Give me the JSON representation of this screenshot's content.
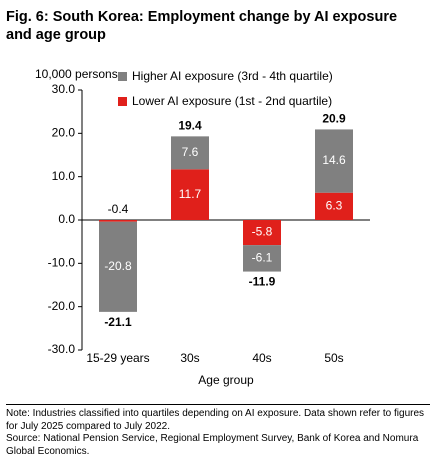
{
  "chart_data": {
    "type": "stacked_bar",
    "title": "Fig. 6: South Korea: Employment change by AI exposure and age group",
    "y_axis_label": "10,000 persons",
    "x_axis_label": "Age group",
    "categories": [
      "15-29 years",
      "30s",
      "40s",
      "50s"
    ],
    "series": [
      {
        "name": "Higher AI exposure (3rd - 4th quartile)",
        "color": "#808080",
        "values": [
          -20.8,
          7.6,
          -6.1,
          14.6
        ]
      },
      {
        "name": "Lower AI exposure (1st - 2nd quartile)",
        "color": "#e0201b",
        "values": [
          -0.4,
          11.7,
          -5.8,
          6.3
        ]
      }
    ],
    "totals": [
      -21.1,
      19.4,
      -11.9,
      20.9
    ],
    "ylim": [
      -30,
      30
    ],
    "yticks": [
      {
        "value": -30,
        "label": "-30.0"
      },
      {
        "value": -20,
        "label": "-20.0"
      },
      {
        "value": -10,
        "label": "-10.0"
      },
      {
        "value": 0,
        "label": "0.0"
      },
      {
        "value": 10,
        "label": "10.0"
      },
      {
        "value": 20,
        "label": "20.0"
      },
      {
        "value": 30,
        "label": "30.0"
      }
    ],
    "notes": [
      "Note: Industries classified into quartiles depending on AI exposure. Data shown refer to figures for July 2025 compared to July 2022.",
      "Source: National Pension Service, Regional Employment Survey, Bank of Korea and Nomura Global Economics."
    ]
  }
}
